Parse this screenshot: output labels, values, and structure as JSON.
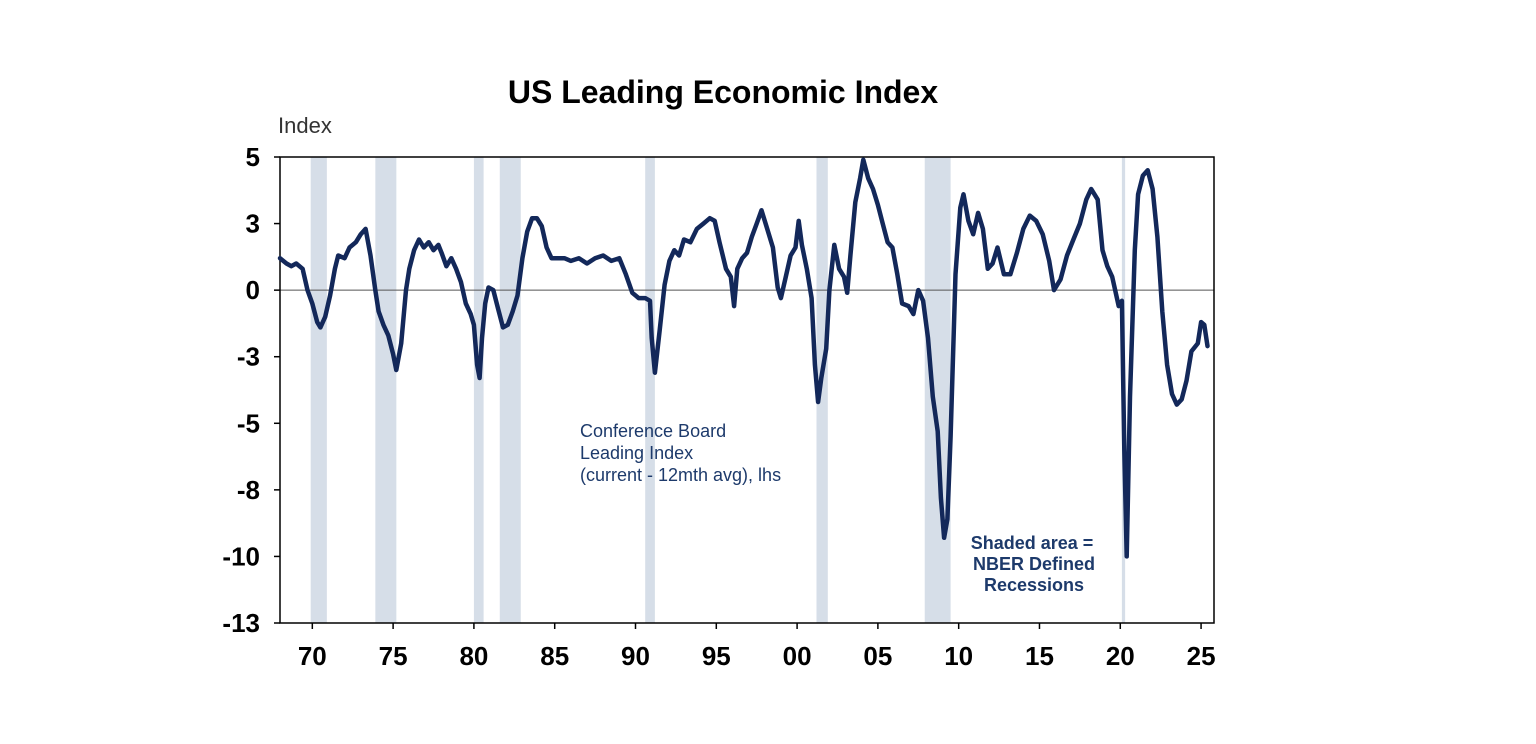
{
  "chart_data": {
    "type": "line",
    "title": "US Leading Economic Index",
    "ylabel": "Index",
    "xlabel": "",
    "yticks": [
      "5",
      "3",
      "0",
      "-3",
      "-5",
      "-8",
      "-10",
      "-13"
    ],
    "ytick_values": [
      5,
      2.5,
      0,
      -2.5,
      -5,
      -7.5,
      -10,
      -12.5
    ],
    "ylim": [
      -12.5,
      5
    ],
    "xticks": [
      "70",
      "75",
      "80",
      "85",
      "90",
      "95",
      "00",
      "05",
      "10",
      "15",
      "20",
      "25"
    ],
    "xtick_values": [
      1970,
      1975,
      1980,
      1985,
      1990,
      1995,
      2000,
      2005,
      2010,
      2015,
      2020,
      2025
    ],
    "xlim": [
      1968,
      2025.8
    ],
    "grid": false,
    "zero_line": true,
    "series": [
      {
        "name": "Conference Board Leading Index (current - 12mth avg), lhs",
        "color": "#13285a",
        "points": [
          [
            1968.0,
            1.2
          ],
          [
            1968.4,
            1.0
          ],
          [
            1968.7,
            0.9
          ],
          [
            1969.0,
            1.0
          ],
          [
            1969.4,
            0.8
          ],
          [
            1969.7,
            0.0
          ],
          [
            1970.0,
            -0.5
          ],
          [
            1970.3,
            -1.2
          ],
          [
            1970.5,
            -1.4
          ],
          [
            1970.8,
            -1.0
          ],
          [
            1971.1,
            -0.2
          ],
          [
            1971.4,
            0.8
          ],
          [
            1971.6,
            1.3
          ],
          [
            1972.0,
            1.2
          ],
          [
            1972.3,
            1.6
          ],
          [
            1972.7,
            1.8
          ],
          [
            1973.0,
            2.1
          ],
          [
            1973.3,
            2.3
          ],
          [
            1973.6,
            1.3
          ],
          [
            1973.9,
            0.0
          ],
          [
            1974.1,
            -0.8
          ],
          [
            1974.4,
            -1.3
          ],
          [
            1974.7,
            -1.7
          ],
          [
            1975.0,
            -2.4
          ],
          [
            1975.2,
            -3.0
          ],
          [
            1975.5,
            -2.0
          ],
          [
            1975.8,
            0.0
          ],
          [
            1976.0,
            0.8
          ],
          [
            1976.3,
            1.5
          ],
          [
            1976.6,
            1.9
          ],
          [
            1976.9,
            1.6
          ],
          [
            1977.2,
            1.8
          ],
          [
            1977.5,
            1.5
          ],
          [
            1977.8,
            1.7
          ],
          [
            1978.0,
            1.4
          ],
          [
            1978.3,
            0.9
          ],
          [
            1978.6,
            1.2
          ],
          [
            1978.9,
            0.8
          ],
          [
            1979.2,
            0.3
          ],
          [
            1979.5,
            -0.5
          ],
          [
            1979.8,
            -0.9
          ],
          [
            1980.0,
            -1.3
          ],
          [
            1980.2,
            -2.8
          ],
          [
            1980.35,
            -3.3
          ],
          [
            1980.5,
            -1.8
          ],
          [
            1980.7,
            -0.5
          ],
          [
            1980.9,
            0.1
          ],
          [
            1981.2,
            0.0
          ],
          [
            1981.5,
            -0.7
          ],
          [
            1981.8,
            -1.4
          ],
          [
            1982.1,
            -1.3
          ],
          [
            1982.4,
            -0.8
          ],
          [
            1982.7,
            -0.2
          ],
          [
            1983.0,
            1.2
          ],
          [
            1983.3,
            2.2
          ],
          [
            1983.6,
            2.7
          ],
          [
            1983.9,
            2.7
          ],
          [
            1984.2,
            2.4
          ],
          [
            1984.5,
            1.6
          ],
          [
            1984.8,
            1.2
          ],
          [
            1985.2,
            1.2
          ],
          [
            1985.6,
            1.2
          ],
          [
            1986.0,
            1.1
          ],
          [
            1986.5,
            1.2
          ],
          [
            1987.0,
            1.0
          ],
          [
            1987.5,
            1.2
          ],
          [
            1988.0,
            1.3
          ],
          [
            1988.5,
            1.1
          ],
          [
            1989.0,
            1.2
          ],
          [
            1989.4,
            0.6
          ],
          [
            1989.8,
            -0.1
          ],
          [
            1990.2,
            -0.3
          ],
          [
            1990.6,
            -0.3
          ],
          [
            1990.9,
            -0.4
          ],
          [
            1991.0,
            -1.8
          ],
          [
            1991.2,
            -3.1
          ],
          [
            1991.5,
            -1.5
          ],
          [
            1991.8,
            0.2
          ],
          [
            1992.1,
            1.1
          ],
          [
            1992.4,
            1.5
          ],
          [
            1992.7,
            1.3
          ],
          [
            1993.0,
            1.9
          ],
          [
            1993.4,
            1.8
          ],
          [
            1993.8,
            2.3
          ],
          [
            1994.2,
            2.5
          ],
          [
            1994.6,
            2.7
          ],
          [
            1994.9,
            2.6
          ],
          [
            1995.2,
            1.8
          ],
          [
            1995.6,
            0.8
          ],
          [
            1995.9,
            0.5
          ],
          [
            1996.1,
            -0.6
          ],
          [
            1996.3,
            0.8
          ],
          [
            1996.6,
            1.2
          ],
          [
            1996.9,
            1.4
          ],
          [
            1997.2,
            2.0
          ],
          [
            1997.5,
            2.5
          ],
          [
            1997.8,
            3.0
          ],
          [
            1998.1,
            2.4
          ],
          [
            1998.5,
            1.6
          ],
          [
            1998.8,
            0.1
          ],
          [
            1999.0,
            -0.3
          ],
          [
            1999.3,
            0.5
          ],
          [
            1999.6,
            1.3
          ],
          [
            1999.9,
            1.6
          ],
          [
            2000.1,
            2.6
          ],
          [
            2000.3,
            1.7
          ],
          [
            2000.6,
            0.8
          ],
          [
            2000.9,
            -0.3
          ],
          [
            2001.1,
            -2.8
          ],
          [
            2001.3,
            -4.2
          ],
          [
            2001.5,
            -3.3
          ],
          [
            2001.8,
            -2.2
          ],
          [
            2002.0,
            0.0
          ],
          [
            2002.3,
            1.7
          ],
          [
            2002.6,
            0.8
          ],
          [
            2002.9,
            0.5
          ],
          [
            2003.1,
            -0.1
          ],
          [
            2003.3,
            1.3
          ],
          [
            2003.6,
            3.3
          ],
          [
            2003.9,
            4.2
          ],
          [
            2004.1,
            4.9
          ],
          [
            2004.4,
            4.2
          ],
          [
            2004.7,
            3.8
          ],
          [
            2005.0,
            3.2
          ],
          [
            2005.3,
            2.5
          ],
          [
            2005.6,
            1.8
          ],
          [
            2005.9,
            1.6
          ],
          [
            2006.2,
            0.6
          ],
          [
            2006.5,
            -0.5
          ],
          [
            2006.9,
            -0.6
          ],
          [
            2007.2,
            -0.9
          ],
          [
            2007.5,
            0.0
          ],
          [
            2007.8,
            -0.4
          ],
          [
            2008.1,
            -1.8
          ],
          [
            2008.4,
            -4.0
          ],
          [
            2008.7,
            -5.3
          ],
          [
            2008.9,
            -7.8
          ],
          [
            2009.1,
            -9.3
          ],
          [
            2009.3,
            -8.6
          ],
          [
            2009.5,
            -5.5
          ],
          [
            2009.8,
            0.6
          ],
          [
            2010.1,
            3.1
          ],
          [
            2010.3,
            3.6
          ],
          [
            2010.6,
            2.6
          ],
          [
            2010.9,
            2.1
          ],
          [
            2011.2,
            2.9
          ],
          [
            2011.5,
            2.3
          ],
          [
            2011.8,
            0.8
          ],
          [
            2012.1,
            1.0
          ],
          [
            2012.4,
            1.6
          ],
          [
            2012.8,
            0.6
          ],
          [
            2013.2,
            0.6
          ],
          [
            2013.6,
            1.4
          ],
          [
            2014.0,
            2.3
          ],
          [
            2014.4,
            2.8
          ],
          [
            2014.8,
            2.6
          ],
          [
            2015.2,
            2.1
          ],
          [
            2015.6,
            1.1
          ],
          [
            2015.9,
            0.0
          ],
          [
            2016.3,
            0.4
          ],
          [
            2016.7,
            1.3
          ],
          [
            2017.1,
            1.9
          ],
          [
            2017.5,
            2.5
          ],
          [
            2017.9,
            3.4
          ],
          [
            2018.2,
            3.8
          ],
          [
            2018.6,
            3.4
          ],
          [
            2018.9,
            1.5
          ],
          [
            2019.2,
            0.9
          ],
          [
            2019.5,
            0.5
          ],
          [
            2019.9,
            -0.6
          ],
          [
            2020.1,
            -0.4
          ],
          [
            2020.25,
            -6.0
          ],
          [
            2020.4,
            -10.0
          ],
          [
            2020.6,
            -4.0
          ],
          [
            2020.9,
            1.5
          ],
          [
            2021.1,
            3.6
          ],
          [
            2021.4,
            4.3
          ],
          [
            2021.7,
            4.5
          ],
          [
            2022.0,
            3.8
          ],
          [
            2022.3,
            2.0
          ],
          [
            2022.6,
            -0.8
          ],
          [
            2022.9,
            -2.8
          ],
          [
            2023.2,
            -3.9
          ],
          [
            2023.5,
            -4.3
          ],
          [
            2023.8,
            -4.1
          ],
          [
            2024.1,
            -3.4
          ],
          [
            2024.4,
            -2.3
          ],
          [
            2024.8,
            -2.0
          ],
          [
            2025.0,
            -1.2
          ],
          [
            2025.2,
            -1.3
          ],
          [
            2025.4,
            -2.1
          ]
        ]
      }
    ],
    "recessions": [
      [
        1969.9,
        1970.9
      ],
      [
        1973.9,
        1975.2
      ],
      [
        1980.0,
        1980.6
      ],
      [
        1981.6,
        1982.9
      ],
      [
        1990.6,
        1991.2
      ],
      [
        2001.2,
        2001.9
      ],
      [
        2007.9,
        2009.5
      ],
      [
        2020.1,
        2020.3
      ]
    ],
    "annotations": {
      "series_label": [
        "Conference Board",
        "Leading Index",
        "(current - 12mth avg), lhs"
      ],
      "shade_label": [
        "Shaded area =",
        "NBER Defined",
        "Recessions"
      ]
    },
    "colors": {
      "line": "#13285a",
      "recession": "#d6dee8",
      "zero_line": "#555555",
      "label_text": "#1d3a6b"
    }
  }
}
